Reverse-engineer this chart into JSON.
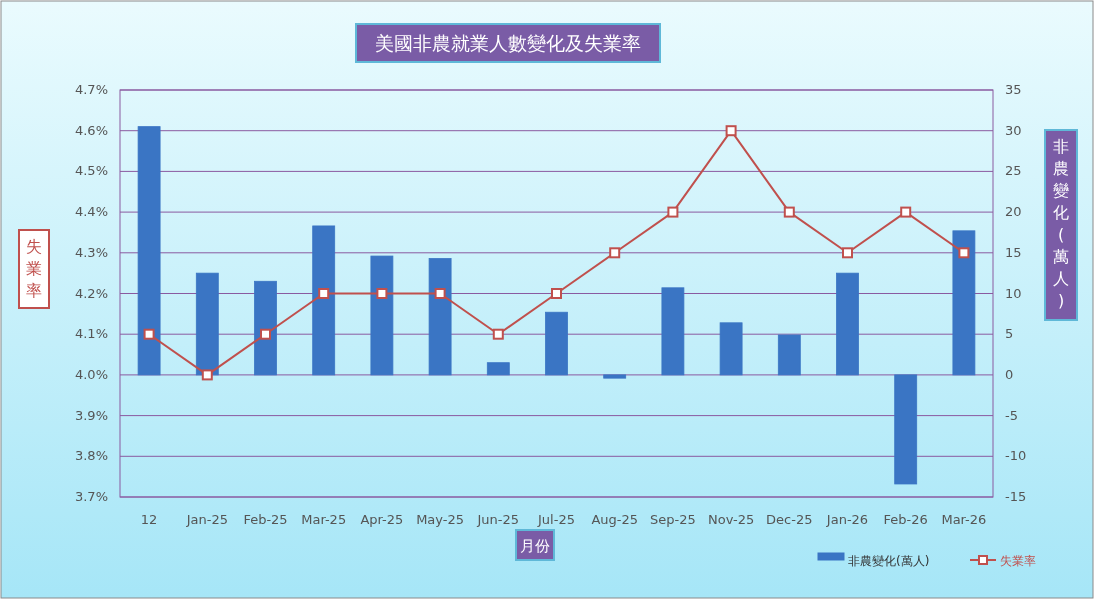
{
  "chart_data": {
    "type": "bar",
    "title": "美國非農就業人數變化及失業率",
    "xlabel": "月份",
    "ylabel": "失業率",
    "y2label": "非農變化(萬人)",
    "categories": [
      "12",
      "Jan-25",
      "Feb-25",
      "Mar-25",
      "Apr-25",
      "May-25",
      "Jun-25",
      "Jul-25",
      "Aug-25",
      "Sep-25",
      "Nov-25",
      "Dec-25",
      "Jan-26",
      "Feb-26",
      "Mar-26"
    ],
    "series": [
      {
        "name": "非農變化(萬人)",
        "axis": "y2",
        "color": "#3a75c4",
        "values": [
          30.5,
          12.5,
          11.5,
          18.3,
          14.6,
          14.3,
          1.5,
          7.7,
          -0.4,
          10.7,
          6.4,
          4.9,
          12.5,
          -13.4,
          17.7
        ]
      },
      {
        "name": "失業率",
        "type": "line",
        "color": "#c0504d",
        "values": [
          4.1,
          4.0,
          4.1,
          4.2,
          4.2,
          4.2,
          4.1,
          4.2,
          4.3,
          4.4,
          4.6,
          4.4,
          4.3,
          4.4,
          4.3
        ]
      }
    ],
    "ylim": [
      3.7,
      4.7
    ],
    "yticks": [
      {
        "value": 3.7,
        "label": "3.7%"
      },
      {
        "value": 3.8,
        "label": "3.8%"
      },
      {
        "value": 3.9,
        "label": "3.9%"
      },
      {
        "value": 4.0,
        "label": "4.0%"
      },
      {
        "value": 4.1,
        "label": "4.1%"
      },
      {
        "value": 4.2,
        "label": "4.2%"
      },
      {
        "value": 4.3,
        "label": "4.3%"
      },
      {
        "value": 4.4,
        "label": "4.4%"
      },
      {
        "value": 4.5,
        "label": "4.5%"
      },
      {
        "value": 4.6,
        "label": "4.6%"
      },
      {
        "value": 4.7,
        "label": "4.7%"
      }
    ],
    "y2lim": [
      -15,
      35
    ],
    "y2ticks": [
      -15,
      -10,
      -5,
      0,
      5,
      10,
      15,
      20,
      25,
      30,
      35
    ],
    "grid": "y",
    "legend": "bottom right",
    "marker": "square"
  }
}
